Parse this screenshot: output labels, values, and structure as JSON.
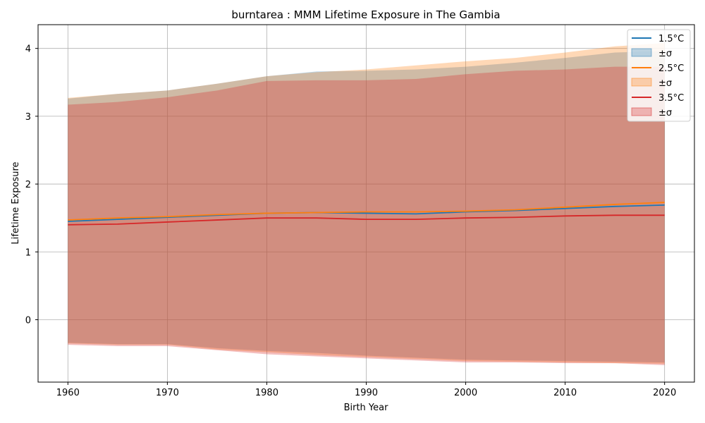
{
  "chart_data": {
    "type": "area",
    "title": "burntarea : MMM Lifetime Exposure in The Gambia",
    "xlabel": "Birth Year",
    "ylabel": "Lifetime Exposure",
    "xlim": [
      1957,
      2023
    ],
    "ylim": [
      -0.92,
      4.35
    ],
    "xticks": [
      1960,
      1970,
      1980,
      1990,
      2000,
      2010,
      2020
    ],
    "yticks": [
      0,
      1,
      2,
      3,
      4
    ],
    "grid": true,
    "legend_position": "top-right",
    "legend": [
      "1.5°C",
      "±σ",
      "2.5°C",
      "±σ",
      "3.5°C",
      "±σ"
    ],
    "colors": {
      "s15": "#1f77b4",
      "s25": "#ff7f0e",
      "s35": "#d62728"
    },
    "x": [
      1960,
      1965,
      1970,
      1975,
      1980,
      1985,
      1990,
      1995,
      2000,
      2005,
      2010,
      2015,
      2020
    ],
    "series": [
      {
        "name": "1.5°C",
        "color": "#1f77b4",
        "mean": [
          1.45,
          1.48,
          1.51,
          1.54,
          1.57,
          1.58,
          1.57,
          1.56,
          1.59,
          1.61,
          1.64,
          1.67,
          1.69
        ],
        "upper": [
          3.26,
          3.33,
          3.38,
          3.48,
          3.59,
          3.66,
          3.67,
          3.69,
          3.73,
          3.79,
          3.86,
          3.94,
          3.96
        ],
        "lower": [
          -0.34,
          -0.36,
          -0.36,
          -0.42,
          -0.46,
          -0.49,
          -0.53,
          -0.56,
          -0.59,
          -0.6,
          -0.61,
          -0.62,
          -0.63
        ]
      },
      {
        "name": "2.5°C",
        "color": "#ff7f0e",
        "mean": [
          1.47,
          1.5,
          1.52,
          1.55,
          1.57,
          1.58,
          1.59,
          1.59,
          1.6,
          1.62,
          1.66,
          1.7,
          1.73
        ],
        "upper": [
          3.27,
          3.33,
          3.38,
          3.48,
          3.59,
          3.65,
          3.69,
          3.75,
          3.81,
          3.86,
          3.94,
          4.03,
          4.08
        ],
        "lower": [
          -0.35,
          -0.37,
          -0.37,
          -0.44,
          -0.48,
          -0.52,
          -0.55,
          -0.58,
          -0.61,
          -0.62,
          -0.63,
          -0.64,
          -0.65
        ]
      },
      {
        "name": "3.5°C",
        "color": "#d62728",
        "mean": [
          1.4,
          1.41,
          1.44,
          1.47,
          1.5,
          1.5,
          1.48,
          1.48,
          1.5,
          1.51,
          1.53,
          1.54,
          1.54
        ],
        "upper": [
          3.17,
          3.21,
          3.28,
          3.38,
          3.52,
          3.53,
          3.53,
          3.55,
          3.62,
          3.67,
          3.69,
          3.73,
          3.73
        ],
        "lower": [
          -0.37,
          -0.39,
          -0.39,
          -0.45,
          -0.51,
          -0.54,
          -0.57,
          -0.6,
          -0.63,
          -0.63,
          -0.64,
          -0.64,
          -0.67
        ]
      }
    ]
  }
}
